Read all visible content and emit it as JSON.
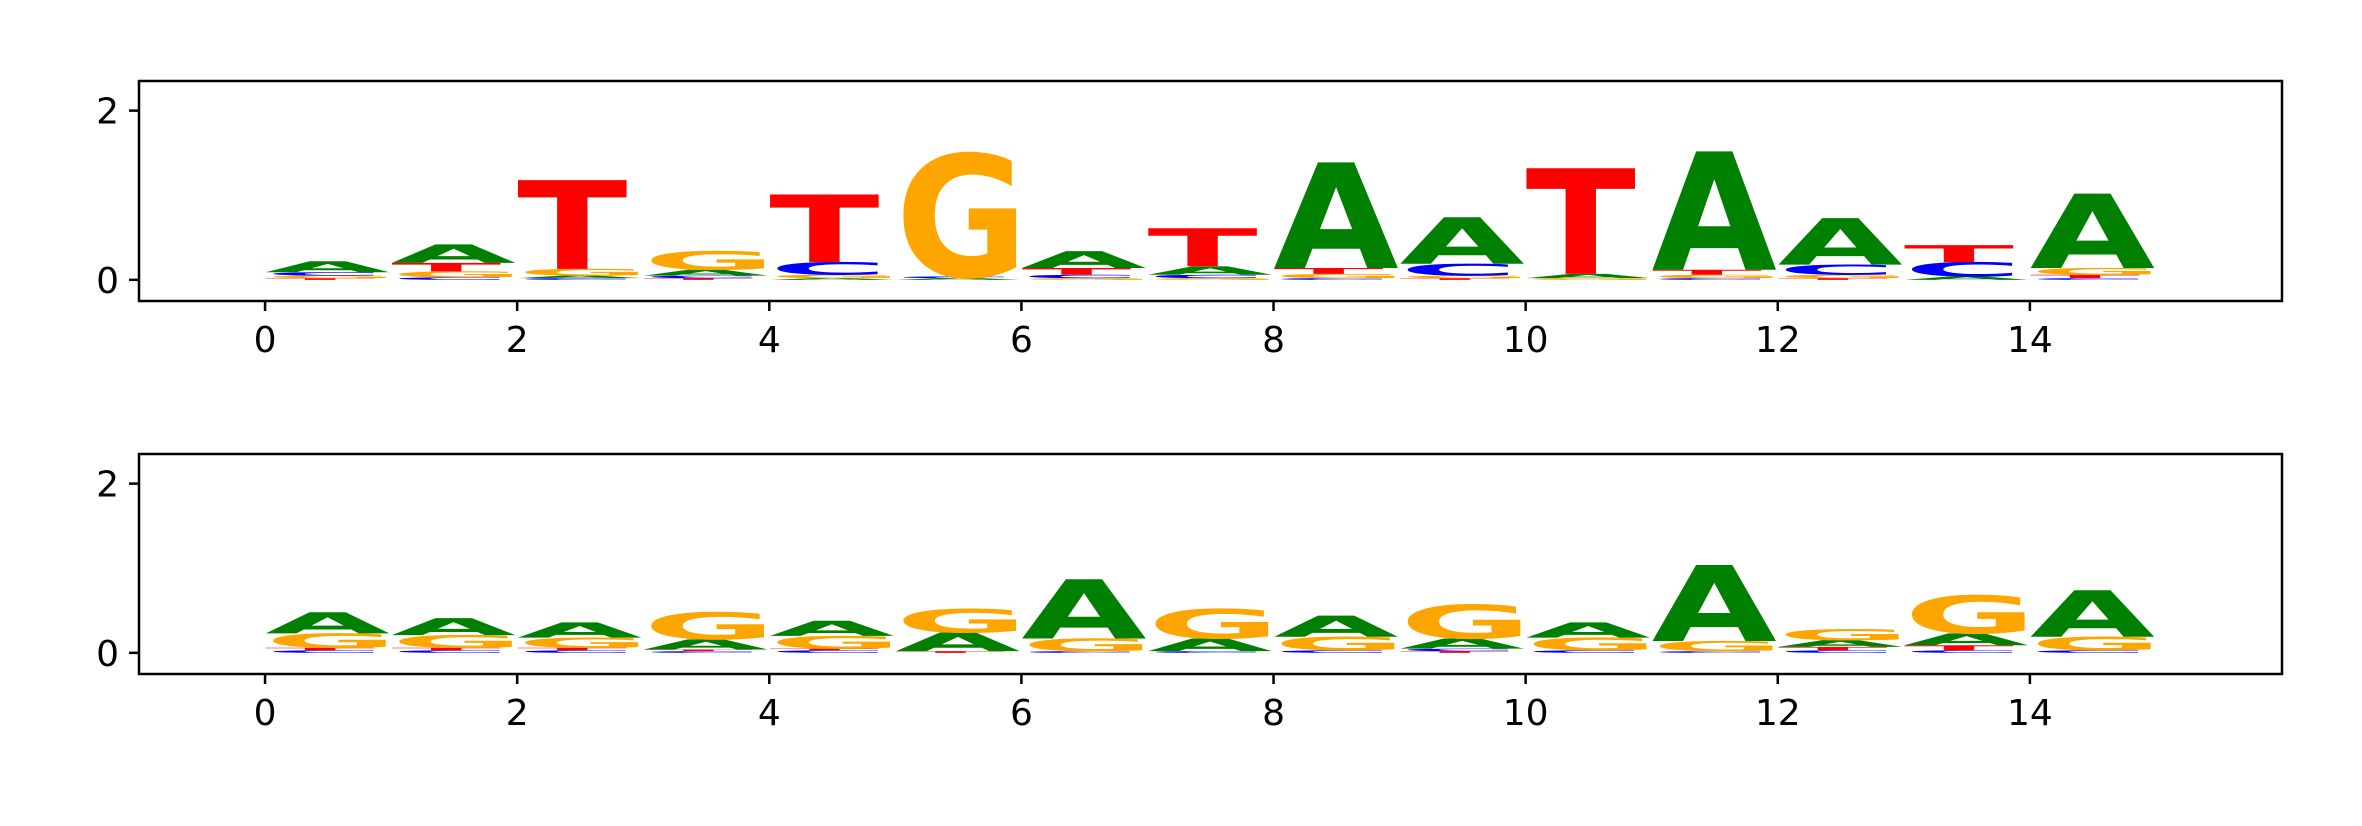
{
  "chart_data": [
    {
      "type": "sequence-logo",
      "title": "",
      "xlabel": "",
      "ylabel": "",
      "xlim": [
        -1,
        16
      ],
      "ylim": [
        -0.25,
        2.35
      ],
      "xticks": [
        "0",
        "2",
        "4",
        "6",
        "8",
        "10",
        "12",
        "14"
      ],
      "yticks": [
        "0",
        "2"
      ],
      "letter_colors": {
        "A": "#008000",
        "C": "#0000ff",
        "G": "#ffa500",
        "T": "#ff0000"
      },
      "positions": [
        {
          "x": 0,
          "letters": [
            {
              "l": "T",
              "h": 0.02
            },
            {
              "l": "G",
              "h": 0.03
            },
            {
              "l": "C",
              "h": 0.04
            },
            {
              "l": "A",
              "h": 0.13
            }
          ]
        },
        {
          "x": 1,
          "letters": [
            {
              "l": "C",
              "h": 0.03
            },
            {
              "l": "G",
              "h": 0.07
            },
            {
              "l": "T",
              "h": 0.1
            },
            {
              "l": "A",
              "h": 0.22
            }
          ]
        },
        {
          "x": 2,
          "letters": [
            {
              "l": "C",
              "h": 0.02
            },
            {
              "l": "A",
              "h": 0.03
            },
            {
              "l": "G",
              "h": 0.08
            },
            {
              "l": "T",
              "h": 1.05
            }
          ]
        },
        {
          "x": 3,
          "letters": [
            {
              "l": "T",
              "h": 0.02
            },
            {
              "l": "C",
              "h": 0.03
            },
            {
              "l": "A",
              "h": 0.07
            },
            {
              "l": "G",
              "h": 0.22
            }
          ]
        },
        {
          "x": 4,
          "letters": [
            {
              "l": "A",
              "h": 0.02
            },
            {
              "l": "G",
              "h": 0.04
            },
            {
              "l": "C",
              "h": 0.15
            },
            {
              "l": "T",
              "h": 0.8
            }
          ]
        },
        {
          "x": 5,
          "letters": [
            {
              "l": "A",
              "h": 0.02
            },
            {
              "l": "C",
              "h": 0.02
            },
            {
              "l": "G",
              "h": 1.45
            }
          ]
        },
        {
          "x": 6,
          "letters": [
            {
              "l": "G",
              "h": 0.02
            },
            {
              "l": "C",
              "h": 0.04
            },
            {
              "l": "T",
              "h": 0.08
            },
            {
              "l": "A",
              "h": 0.2
            }
          ]
        },
        {
          "x": 7,
          "letters": [
            {
              "l": "G",
              "h": 0.02
            },
            {
              "l": "C",
              "h": 0.04
            },
            {
              "l": "A",
              "h": 0.1
            },
            {
              "l": "T",
              "h": 0.45
            }
          ]
        },
        {
          "x": 8,
          "letters": [
            {
              "l": "C",
              "h": 0.02
            },
            {
              "l": "G",
              "h": 0.05
            },
            {
              "l": "T",
              "h": 0.07
            },
            {
              "l": "A",
              "h": 1.25
            }
          ]
        },
        {
          "x": 9,
          "letters": [
            {
              "l": "T",
              "h": 0.02
            },
            {
              "l": "G",
              "h": 0.03
            },
            {
              "l": "C",
              "h": 0.14
            },
            {
              "l": "A",
              "h": 0.55
            }
          ]
        },
        {
          "x": 10,
          "letters": [
            {
              "l": "G",
              "h": 0.02
            },
            {
              "l": "A",
              "h": 0.05
            },
            {
              "l": "T",
              "h": 1.25
            }
          ]
        },
        {
          "x": 11,
          "letters": [
            {
              "l": "C",
              "h": 0.02
            },
            {
              "l": "G",
              "h": 0.04
            },
            {
              "l": "T",
              "h": 0.06
            },
            {
              "l": "A",
              "h": 1.4
            }
          ]
        },
        {
          "x": 12,
          "letters": [
            {
              "l": "T",
              "h": 0.02
            },
            {
              "l": "G",
              "h": 0.04
            },
            {
              "l": "C",
              "h": 0.12
            },
            {
              "l": "A",
              "h": 0.55
            }
          ]
        },
        {
          "x": 13,
          "letters": [
            {
              "l": "A",
              "h": 0.04
            },
            {
              "l": "C",
              "h": 0.17
            },
            {
              "l": "T",
              "h": 0.2
            }
          ]
        },
        {
          "x": 14,
          "letters": [
            {
              "l": "C",
              "h": 0.02
            },
            {
              "l": "T",
              "h": 0.04
            },
            {
              "l": "G",
              "h": 0.08
            },
            {
              "l": "A",
              "h": 0.88
            }
          ]
        }
      ]
    },
    {
      "type": "sequence-logo",
      "title": "",
      "xlabel": "",
      "ylabel": "",
      "xlim": [
        -1,
        16
      ],
      "ylim": [
        -0.25,
        2.35
      ],
      "xticks": [
        "0",
        "2",
        "4",
        "6",
        "8",
        "10",
        "12",
        "14"
      ],
      "yticks": [
        "0",
        "2"
      ],
      "letter_colors": {
        "A": "#008000",
        "C": "#0000ff",
        "G": "#ffa500",
        "T": "#ff0000"
      },
      "positions": [
        {
          "x": 0,
          "letters": [
            {
              "l": "C",
              "h": 0.03
            },
            {
              "l": "T",
              "h": 0.03
            },
            {
              "l": "G",
              "h": 0.17
            },
            {
              "l": "A",
              "h": 0.25
            }
          ]
        },
        {
          "x": 1,
          "letters": [
            {
              "l": "C",
              "h": 0.03
            },
            {
              "l": "T",
              "h": 0.03
            },
            {
              "l": "G",
              "h": 0.15
            },
            {
              "l": "A",
              "h": 0.2
            }
          ]
        },
        {
          "x": 2,
          "letters": [
            {
              "l": "C",
              "h": 0.03
            },
            {
              "l": "T",
              "h": 0.03
            },
            {
              "l": "G",
              "h": 0.12
            },
            {
              "l": "A",
              "h": 0.18
            }
          ]
        },
        {
          "x": 3,
          "letters": [
            {
              "l": "C",
              "h": 0.02
            },
            {
              "l": "T",
              "h": 0.02
            },
            {
              "l": "A",
              "h": 0.12
            },
            {
              "l": "G",
              "h": 0.32
            }
          ]
        },
        {
          "x": 4,
          "letters": [
            {
              "l": "C",
              "h": 0.03
            },
            {
              "l": "T",
              "h": 0.02
            },
            {
              "l": "G",
              "h": 0.15
            },
            {
              "l": "A",
              "h": 0.18
            }
          ]
        },
        {
          "x": 5,
          "letters": [
            {
              "l": "T",
              "h": 0.02
            },
            {
              "l": "A",
              "h": 0.22
            },
            {
              "l": "G",
              "h": 0.28
            }
          ]
        },
        {
          "x": 6,
          "letters": [
            {
              "l": "C",
              "h": 0.02
            },
            {
              "l": "G",
              "h": 0.15
            },
            {
              "l": "A",
              "h": 0.7
            }
          ]
        },
        {
          "x": 7,
          "letters": [
            {
              "l": "C",
              "h": 0.02
            },
            {
              "l": "A",
              "h": 0.15
            },
            {
              "l": "G",
              "h": 0.35
            }
          ]
        },
        {
          "x": 8,
          "letters": [
            {
              "l": "C",
              "h": 0.03
            },
            {
              "l": "G",
              "h": 0.16
            },
            {
              "l": "A",
              "h": 0.25
            }
          ]
        },
        {
          "x": 9,
          "letters": [
            {
              "l": "T",
              "h": 0.02
            },
            {
              "l": "C",
              "h": 0.03
            },
            {
              "l": "A",
              "h": 0.12
            },
            {
              "l": "G",
              "h": 0.4
            }
          ]
        },
        {
          "x": 10,
          "letters": [
            {
              "l": "C",
              "h": 0.03
            },
            {
              "l": "G",
              "h": 0.15
            },
            {
              "l": "A",
              "h": 0.18
            }
          ]
        },
        {
          "x": 11,
          "letters": [
            {
              "l": "C",
              "h": 0.02
            },
            {
              "l": "G",
              "h": 0.12
            },
            {
              "l": "A",
              "h": 0.9
            }
          ]
        },
        {
          "x": 12,
          "letters": [
            {
              "l": "C",
              "h": 0.03
            },
            {
              "l": "T",
              "h": 0.04
            },
            {
              "l": "A",
              "h": 0.08
            },
            {
              "l": "G",
              "h": 0.13
            }
          ]
        },
        {
          "x": 13,
          "letters": [
            {
              "l": "C",
              "h": 0.03
            },
            {
              "l": "T",
              "h": 0.06
            },
            {
              "l": "A",
              "h": 0.14
            },
            {
              "l": "G",
              "h": 0.45
            }
          ]
        },
        {
          "x": 14,
          "letters": [
            {
              "l": "C",
              "h": 0.03
            },
            {
              "l": "G",
              "h": 0.16
            },
            {
              "l": "A",
              "h": 0.55
            }
          ]
        }
      ]
    }
  ]
}
